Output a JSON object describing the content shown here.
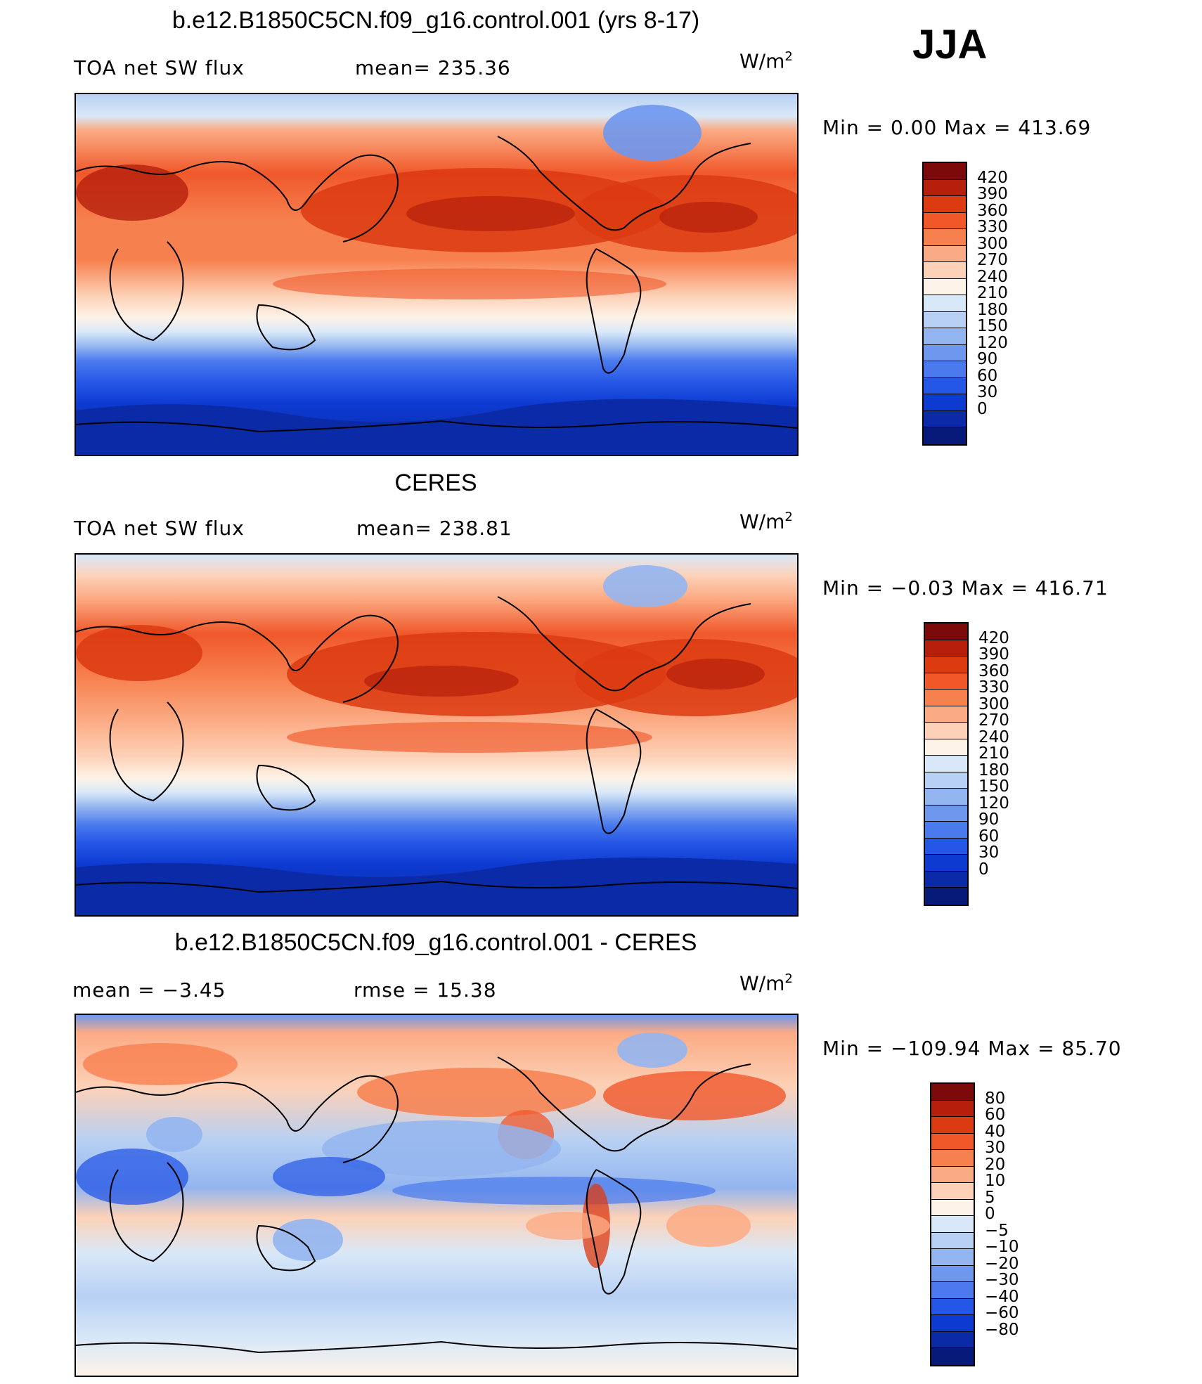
{
  "season": "JJA",
  "panels": [
    {
      "title": "b.e12.B1850C5CN.f09_g16.control.001 (yrs 8-17)",
      "variable": "TOA net SW flux",
      "stat_left": "",
      "stat_mid": "mean= 235.36",
      "units_base": "W/m",
      "units_exp": "2",
      "minmax": "Min =    0.00 Max = 413.69",
      "colorbar": {
        "colors": [
          "#7d0a0a",
          "#b51f0c",
          "#dc3a10",
          "#f0582a",
          "#f7804f",
          "#fbab84",
          "#fdd1b7",
          "#fdf3e8",
          "#d9e8f8",
          "#b7d0f3",
          "#93b5ef",
          "#6e97ee",
          "#4a7aee",
          "#2557e6",
          "#0d3ad1",
          "#0a2aa8",
          "#071a7a"
        ],
        "labels": [
          "420",
          "390",
          "360",
          "330",
          "300",
          "270",
          "240",
          "210",
          "180",
          "150",
          "120",
          "90",
          "60",
          "30",
          "0"
        ]
      }
    },
    {
      "title": "CERES",
      "variable": "TOA net SW flux",
      "stat_left": "",
      "stat_mid": "mean= 238.81",
      "units_base": "W/m",
      "units_exp": "2",
      "minmax": "Min =  −0.03 Max = 416.71",
      "colorbar": {
        "colors": [
          "#7d0a0a",
          "#b51f0c",
          "#dc3a10",
          "#f0582a",
          "#f7804f",
          "#fbab84",
          "#fdd1b7",
          "#fdf3e8",
          "#d9e8f8",
          "#b7d0f3",
          "#93b5ef",
          "#6e97ee",
          "#4a7aee",
          "#2557e6",
          "#0d3ad1",
          "#0a2aa8",
          "#071a7a"
        ],
        "labels": [
          "420",
          "390",
          "360",
          "330",
          "300",
          "270",
          "240",
          "210",
          "180",
          "150",
          "120",
          "90",
          "60",
          "30",
          "0"
        ]
      }
    },
    {
      "title": "b.e12.B1850C5CN.f09_g16.control.001 - CERES",
      "variable": "",
      "stat_left": "mean =   −3.45",
      "stat_mid": "rmse =   15.38",
      "units_base": "W/m",
      "units_exp": "2",
      "minmax": "Min = −109.94 Max =   85.70",
      "colorbar": {
        "colors": [
          "#7d0a0a",
          "#b51f0c",
          "#dc3a10",
          "#f0582a",
          "#f7804f",
          "#fbab84",
          "#fdd1b7",
          "#fdf3e8",
          "#d9e8f8",
          "#b7d0f3",
          "#93b5ef",
          "#6e97ee",
          "#4a7aee",
          "#2557e6",
          "#0d3ad1",
          "#0a2aa8",
          "#071a7a"
        ],
        "labels": [
          "80",
          "60",
          "40",
          "30",
          "20",
          "10",
          "5",
          "0",
          "−5",
          "−10",
          "−20",
          "−30",
          "−40",
          "−60",
          "−80"
        ]
      }
    }
  ]
}
